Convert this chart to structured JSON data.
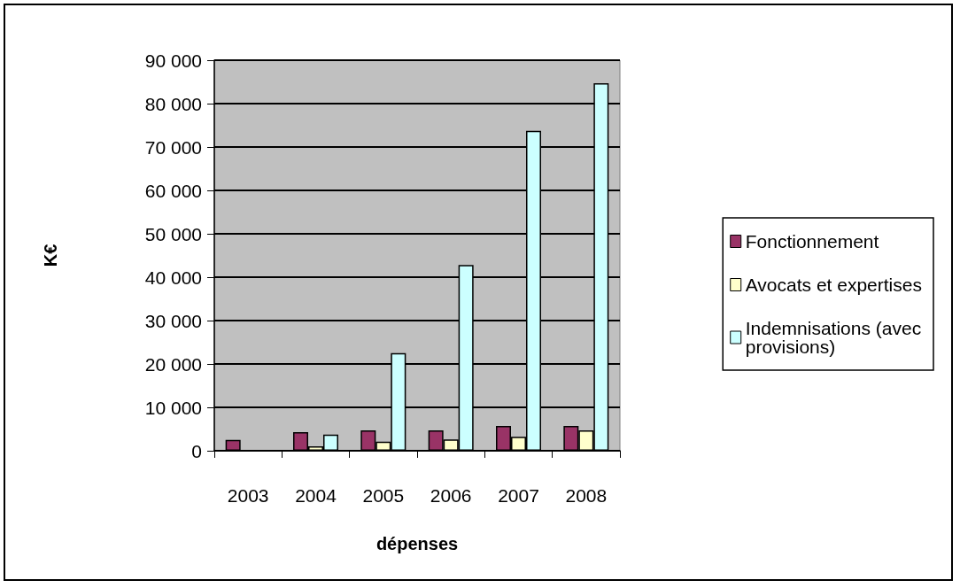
{
  "chart_data": {
    "type": "bar",
    "xlabel": "dépenses",
    "ylabel": "K€",
    "categories": [
      "2003",
      "2004",
      "2005",
      "2006",
      "2007",
      "2008"
    ],
    "series": [
      {
        "name": "Fonctionnement",
        "color": "#993366",
        "values": [
          2500,
          4300,
          4700,
          4700,
          5700,
          5700
        ]
      },
      {
        "name": "Avocats et expertises",
        "color": "#ffffcc",
        "values": [
          null,
          1000,
          2100,
          2600,
          3200,
          4700
        ]
      },
      {
        "name": "Indemnisations (avec provisions)",
        "color": "#ccffff",
        "values": [
          null,
          3700,
          22500,
          42800,
          73700,
          84700
        ]
      }
    ],
    "ylim": [
      0,
      90000
    ],
    "yticks": [
      0,
      {
        "value": 10000,
        "label": "10 000"
      },
      {
        "value": 20000,
        "label": "20 000"
      },
      {
        "value": 30000,
        "label": "30 000"
      },
      {
        "value": 40000,
        "label": "40 000"
      },
      {
        "value": 50000,
        "label": "50 000"
      },
      {
        "value": 60000,
        "label": "60 000"
      },
      {
        "value": 70000,
        "label": "70 000"
      },
      {
        "value": 80000,
        "label": "80 000"
      },
      {
        "value": 90000,
        "label": "90 000"
      }
    ],
    "grid": "y",
    "legend": "right"
  }
}
